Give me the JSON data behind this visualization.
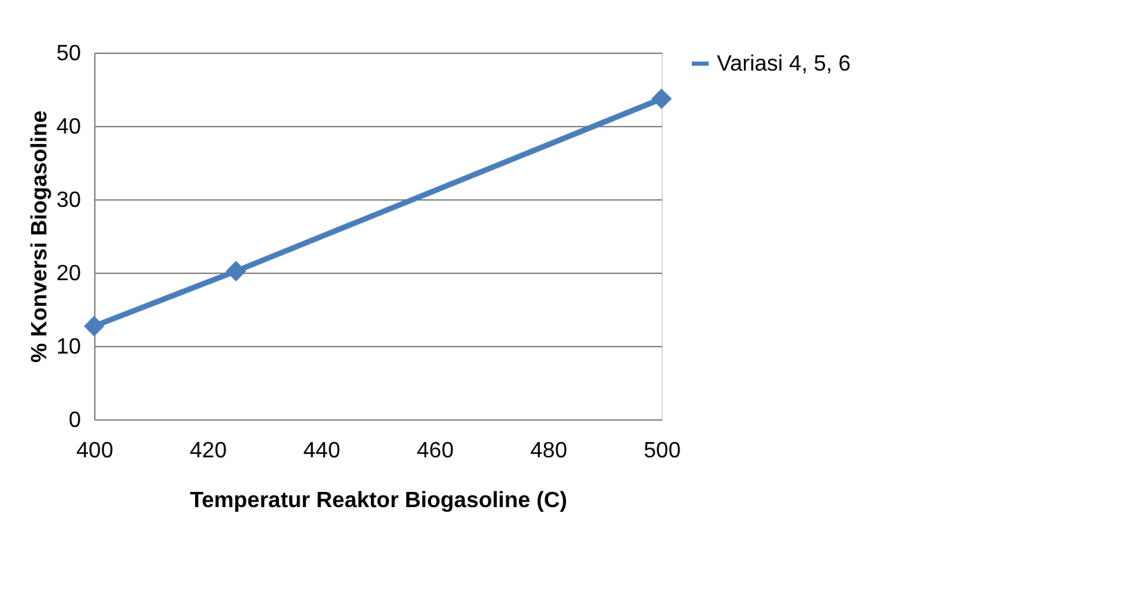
{
  "chart_data": {
    "type": "line",
    "xlabel": "Temperatur Reaktor Biogasoline (C)",
    "ylabel": "% Konversi Biogasoline",
    "x": [
      400,
      425,
      500
    ],
    "series": [
      {
        "name": "Variasi 4, 5, 6",
        "color": "#4a7ebb",
        "values": [
          12.7,
          20.2,
          43.7
        ]
      }
    ],
    "xlim": [
      400,
      500
    ],
    "xticks": [
      400,
      420,
      440,
      460,
      480,
      500
    ],
    "ylim": [
      0,
      50
    ],
    "yticks": [
      0,
      10,
      20,
      30,
      40,
      50
    ],
    "grid": "y",
    "legend": "right",
    "marker": "diamond",
    "line_style": "solid"
  }
}
